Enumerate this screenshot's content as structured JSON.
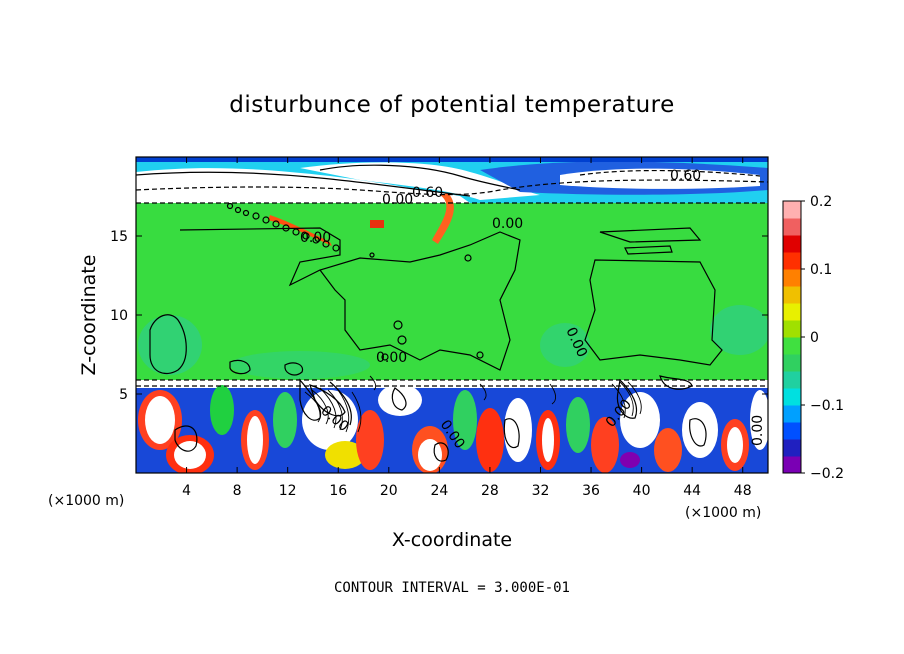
{
  "chart_data": {
    "type": "heatmap",
    "title": "disturbunce of potential temperature",
    "xlabel": "X-coordinate",
    "ylabel": "Z-coordinate",
    "x_unit": "(×1000 m)",
    "xlim": [
      0,
      50
    ],
    "ylim": [
      0,
      20
    ],
    "x_ticks": [
      4,
      8,
      12,
      16,
      20,
      24,
      28,
      32,
      36,
      40,
      44,
      48
    ],
    "y_ticks": [
      5,
      10,
      15
    ],
    "colorbar": {
      "range": [
        -0.2,
        0.2
      ],
      "ticks": [
        0.2,
        0.1,
        0,
        -0.1,
        -0.2
      ],
      "tick_labels": [
        "0.2",
        "0.1",
        "0",
        "−0.1",
        "−0.2"
      ],
      "colors": [
        "#7a00b4",
        "#2020c0",
        "#0050ff",
        "#00a0ff",
        "#00e0e0",
        "#20d0a0",
        "#30d060",
        "#40e040",
        "#a0e000",
        "#e8f000",
        "#f0c000",
        "#ff8000",
        "#ff3000",
        "#e00000",
        "#f06060",
        "#ffb0b0"
      ]
    },
    "contour_labels": [
      "0.00",
      "0.60",
      "0.00",
      "0.60",
      "0.00",
      "0.00",
      "0.00",
      "0.00",
      "0.00",
      "0.00",
      "0.00"
    ],
    "contour_interval_text": "CONTOUR INTERVAL = 3.000E-01",
    "grid": false,
    "legend": "colorbar-right"
  }
}
